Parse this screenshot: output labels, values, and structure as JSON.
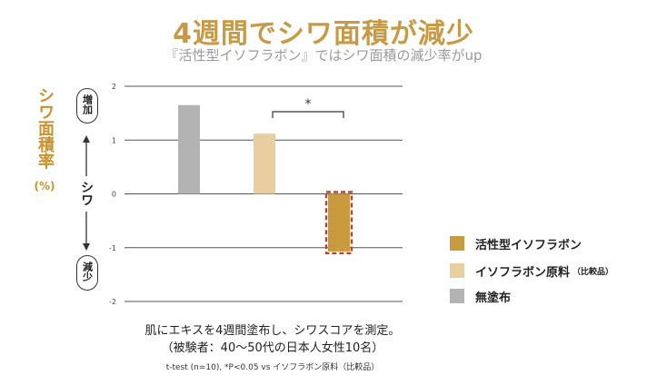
{
  "title": "4週間でシワ面積が減少",
  "subtitle": "『活性型イソフラボン』ではシワ面積の減少率がup",
  "ylabel": {
    "main": "シワ面積率",
    "unit": "(%)"
  },
  "axis_side": {
    "up": "増加",
    "down": "減少",
    "middle": "シワ"
  },
  "significance_marker": "*",
  "colors": {
    "active": "#c99a3e",
    "isoflavone": "#e9cfa0",
    "untreated": "#b3b3b3",
    "dashed_outline": "#b5462a",
    "grid": "#555555"
  },
  "chart_data": {
    "type": "bar",
    "categories": [
      "無塗布",
      "イソフラボン原料",
      "活性型イソフラボン"
    ],
    "values": [
      1.65,
      1.12,
      -1.07
    ],
    "ylim": [
      -2,
      2
    ],
    "yticks": [
      "2",
      "1",
      "0",
      "-1",
      "-2"
    ],
    "title": "4週間でシワ面積が減少",
    "grid": true,
    "legend": [
      {
        "label": "活性型イソフラボン",
        "note": ""
      },
      {
        "label": "イソフラボン原料",
        "note": "（比較品）"
      },
      {
        "label": "無塗布",
        "note": ""
      }
    ]
  },
  "notes": {
    "line1": "肌にエキスを4週間塗布し、シワスコアを測定。",
    "line2": "（被験者：40～50代の日本人女性10名）",
    "line3": "t-test (n=10), *P<0.05  vs イソフラボン原料（比較品）"
  }
}
